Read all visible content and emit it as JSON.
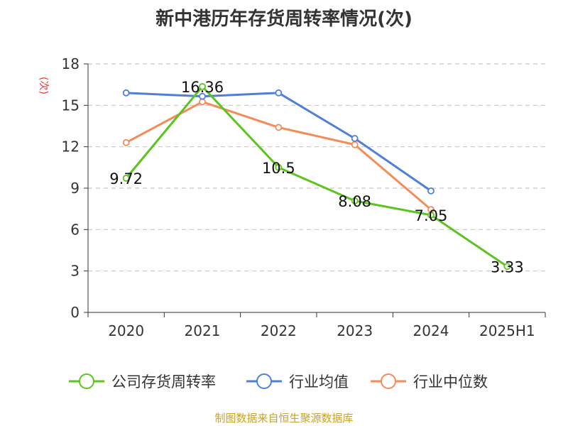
{
  "title": "新中港历年存货周转率情况(次)",
  "source": "制图数据来自恒生聚源数据库",
  "chart_data": {
    "type": "line",
    "ylabel": "(次)",
    "ylim": [
      0,
      18
    ],
    "yticks": [
      0,
      3,
      6,
      9,
      12,
      15,
      18
    ],
    "categories": [
      "2020",
      "2021",
      "2022",
      "2023",
      "2024",
      "2025H1"
    ],
    "grid": true,
    "legend_position": "bottom",
    "series": [
      {
        "name": "公司存货周转率",
        "color": "#5cc41f",
        "values": [
          9.72,
          16.36,
          10.5,
          8.08,
          7.05,
          3.33
        ],
        "labels": [
          "9.72",
          "16.36",
          "10.5",
          "8.08",
          "7.05",
          "3.33"
        ]
      },
      {
        "name": "行业均值",
        "color": "#4f7fd8",
        "values": [
          15.9,
          15.65,
          15.9,
          12.6,
          8.8,
          null
        ]
      },
      {
        "name": "行业中位数",
        "color": "#f58b59",
        "values": [
          12.3,
          15.25,
          13.4,
          12.15,
          7.45,
          null
        ]
      }
    ]
  }
}
